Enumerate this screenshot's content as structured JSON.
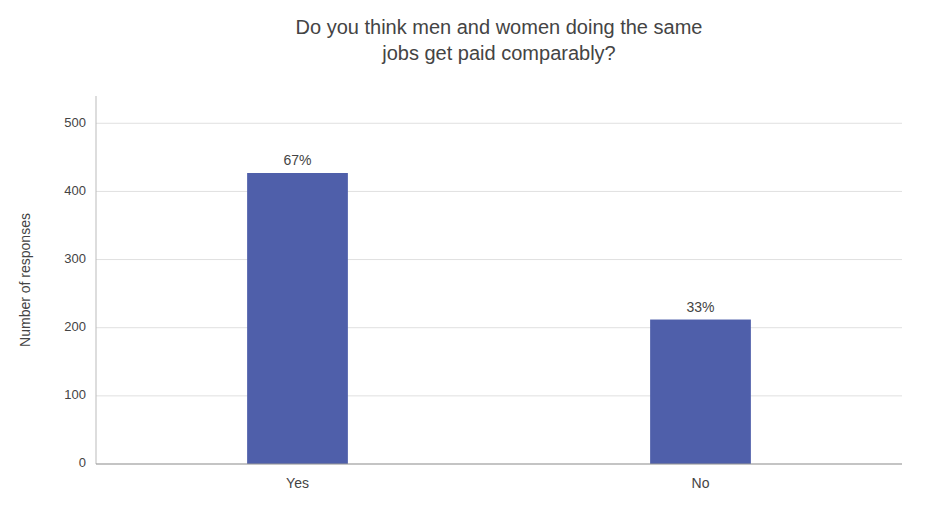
{
  "chart_data": {
    "type": "bar",
    "title": "Do you think men and women doing the same\njobs get paid comparably?",
    "ylabel": "Number of responses",
    "categories": [
      "Yes",
      "No"
    ],
    "values": [
      427,
      212
    ],
    "value_labels": [
      "67%",
      "33%"
    ],
    "color": "#4f5faa",
    "ylim": [
      0,
      540
    ],
    "yticks": [
      0,
      100,
      200,
      300,
      400,
      500
    ],
    "grid": true,
    "data_labels": true
  }
}
